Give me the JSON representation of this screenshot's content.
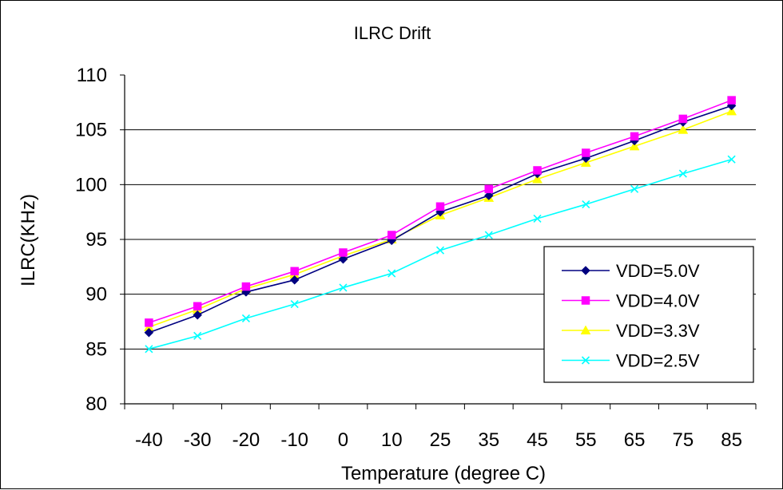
{
  "chart_data": {
    "type": "line",
    "title": "ILRC Drift",
    "xlabel": "Temperature (degree C)",
    "ylabel": "ILRC(KHz)",
    "categories": [
      "-40",
      "-30",
      "-20",
      "-10",
      "0",
      "10",
      "25",
      "35",
      "45",
      "55",
      "65",
      "75",
      "85"
    ],
    "ylim": [
      80,
      110
    ],
    "yticks": [
      "80",
      "85",
      "90",
      "95",
      "100",
      "105",
      "110"
    ],
    "grid": "horizontal",
    "legend_position": "bottom-right",
    "series": [
      {
        "name": "VDD=5.0V",
        "color": "#000080",
        "marker": "diamond",
        "values": [
          86.5,
          88.1,
          90.2,
          91.3,
          93.2,
          94.9,
          97.5,
          99.0,
          101.0,
          102.4,
          104.0,
          105.7,
          107.2
        ]
      },
      {
        "name": "VDD=4.0V",
        "color": "#FF00FF",
        "marker": "square",
        "values": [
          87.4,
          88.9,
          90.7,
          92.1,
          93.8,
          95.4,
          98.0,
          99.6,
          101.3,
          102.9,
          104.4,
          106.0,
          107.7
        ]
      },
      {
        "name": "VDD=3.3V",
        "color": "#FFFF00",
        "marker": "triangle",
        "values": [
          87.0,
          88.6,
          90.5,
          91.8,
          93.5,
          95.0,
          97.2,
          98.8,
          100.5,
          102.0,
          103.5,
          105.0,
          106.7
        ]
      },
      {
        "name": "VDD=2.5V",
        "color": "#00FFFF",
        "marker": "x",
        "values": [
          85.0,
          86.2,
          87.8,
          89.1,
          90.6,
          91.9,
          94.0,
          95.4,
          96.9,
          98.2,
          99.6,
          101.0,
          102.3
        ]
      }
    ]
  }
}
